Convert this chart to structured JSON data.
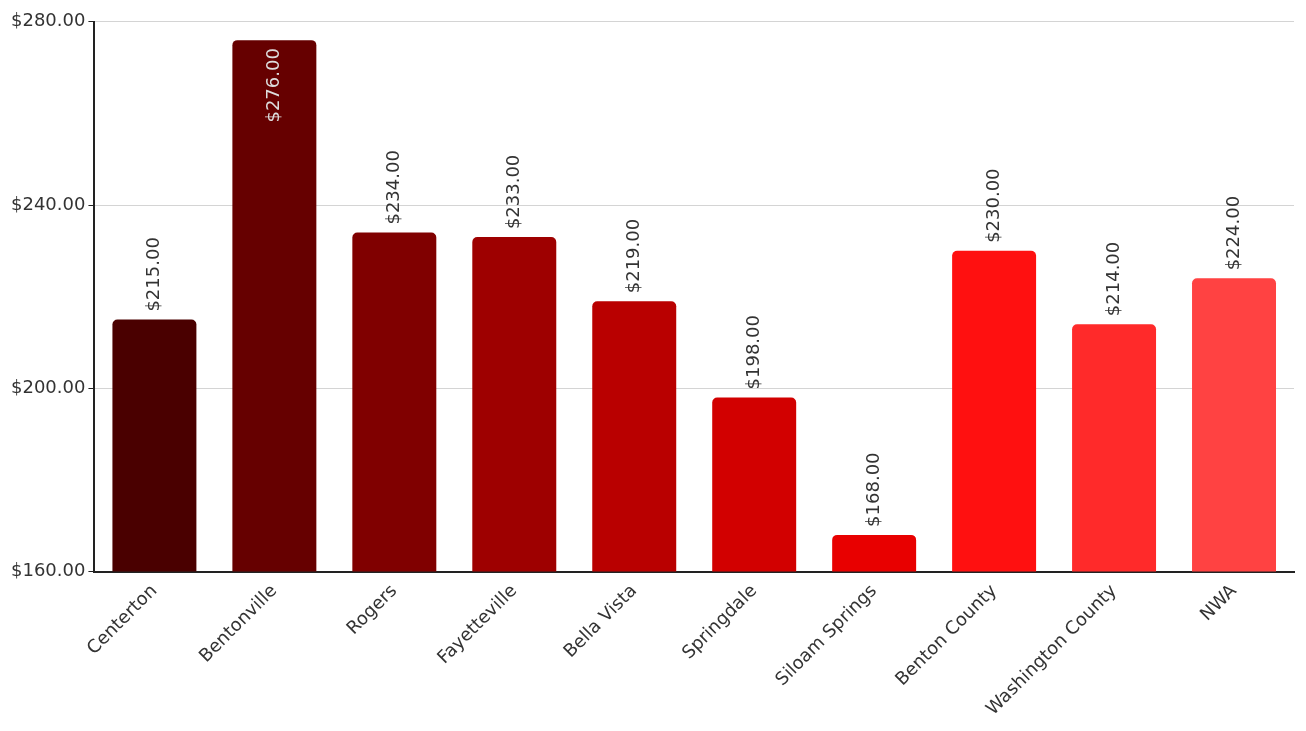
{
  "chart_data": {
    "type": "bar",
    "categories": [
      "Centerton",
      "Bentonville",
      "Rogers",
      "Fayetteville",
      "Bella Vista",
      "Springdale",
      "Siloam Springs",
      "Benton County",
      "Washington County",
      "NWA"
    ],
    "values": [
      215,
      276,
      234,
      233,
      219,
      198,
      168,
      230,
      214,
      224
    ],
    "colors": [
      "#4a0000",
      "#660000",
      "#800000",
      "#9e0000",
      "#b90000",
      "#d20000",
      "#e80000",
      "#ff1010",
      "#ff2a2a",
      "#ff4242"
    ],
    "value_labels": [
      "$215.00",
      "$276.00",
      "$234.00",
      "$233.00",
      "$219.00",
      "$198.00",
      "$168.00",
      "$230.00",
      "$214.00",
      "$224.00"
    ],
    "ylim": [
      160,
      280
    ],
    "yticks": [
      {
        "value": 160,
        "label": "$160.00"
      },
      {
        "value": 200,
        "label": "$200.00"
      },
      {
        "value": 240,
        "label": "$240.00"
      },
      {
        "value": 280,
        "label": "$280.00"
      }
    ],
    "grid": "y",
    "legend": false
  }
}
